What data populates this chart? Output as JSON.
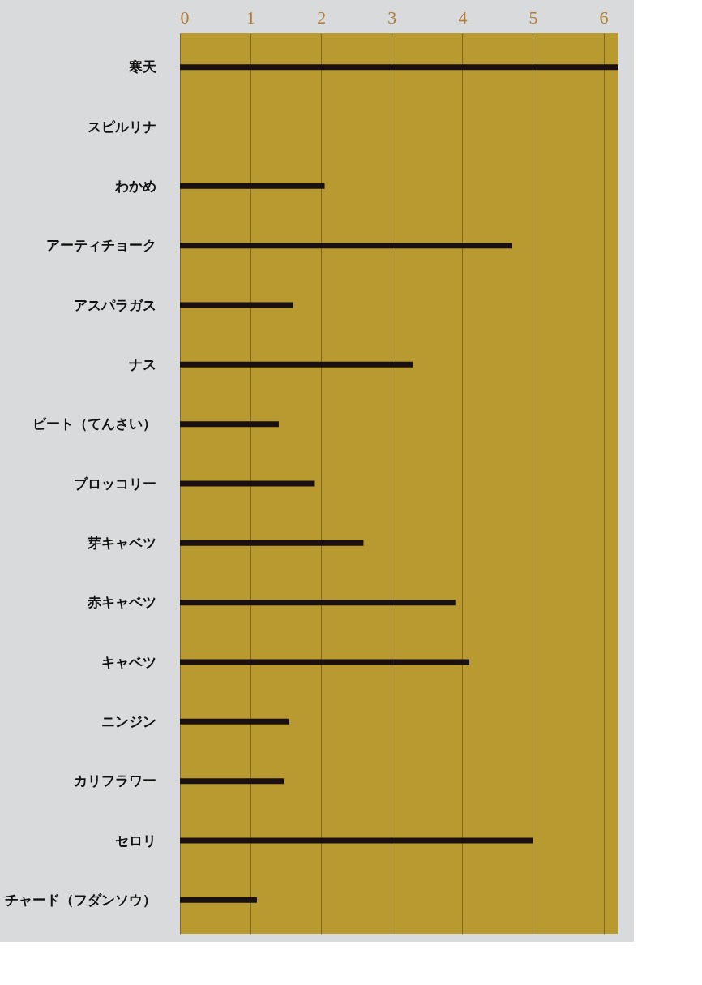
{
  "chart_data": {
    "type": "bar",
    "orientation": "horizontal",
    "categories": [
      "寒天",
      "スピルリナ",
      "わかめ",
      "アーティチョーク",
      "アスパラガス",
      "ナス",
      "ビート（てんさい）",
      "ブロッコリー",
      "芽キャベツ",
      "赤キャベツ",
      "キャベツ",
      "ニンジン",
      "カリフラワー",
      "セロリ",
      "チャード（フダンソウ）"
    ],
    "values": [
      6.2,
      null,
      2.05,
      4.7,
      1.6,
      3.3,
      1.4,
      1.9,
      2.6,
      3.9,
      4.1,
      1.55,
      1.47,
      5.0,
      1.09
    ],
    "color": "#1a1010",
    "xlim": [
      0,
      6.2
    ],
    "xticks": [
      0,
      1,
      2,
      3,
      4,
      5,
      6
    ],
    "grid": "x"
  }
}
